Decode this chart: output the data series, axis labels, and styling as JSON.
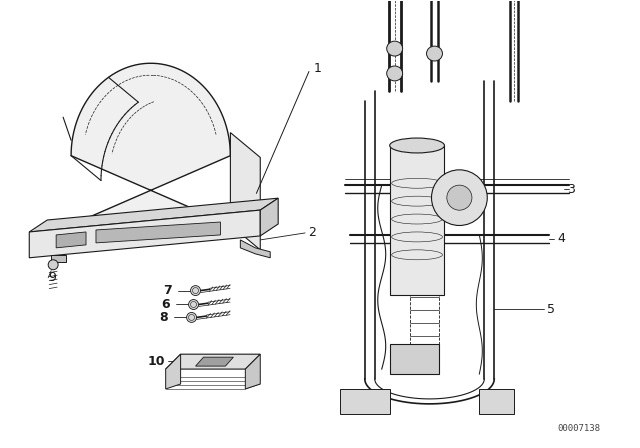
{
  "bg_color": "#ffffff",
  "line_color": "#1a1a1a",
  "fig_width": 6.4,
  "fig_height": 4.48,
  "dpi": 100,
  "watermark": "00007138"
}
